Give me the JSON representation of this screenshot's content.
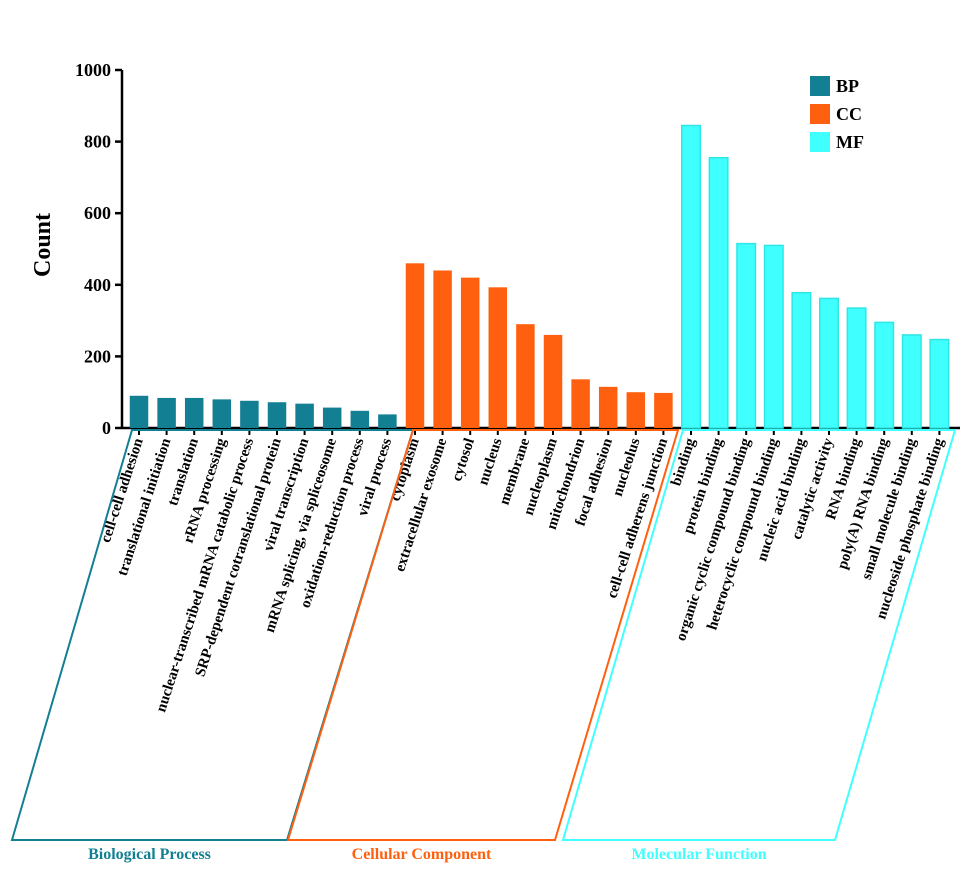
{
  "chart_data": {
    "type": "bar",
    "ylabel": "Count",
    "ylim": [
      0,
      1000
    ],
    "yticks": [
      0,
      200,
      400,
      600,
      800,
      1000
    ],
    "legend_position": "top-right",
    "colors": {
      "BP": "#137f93",
      "CC": "#ff6010",
      "MF": "#40ffff"
    },
    "series": [
      {
        "name": "BP",
        "group_label": "Biological Process",
        "categories": [
          "cell-cell adhesion",
          "translational initiation",
          "translation",
          "rRNA processing",
          "nuclear-transcribed mRNA catabolic process",
          "SRP-dependent cotranslational protein",
          "viral transcription",
          "mRNA splicing, via spliceosome",
          "oxidation-reduction process",
          "viral process"
        ],
        "values": [
          90,
          84,
          84,
          80,
          76,
          72,
          68,
          57,
          48,
          38
        ]
      },
      {
        "name": "CC",
        "group_label": "Cellular Component",
        "categories": [
          "cytoplasm",
          "extracellular exosome",
          "cytosol",
          "nucleus",
          "membrane",
          "nucleoplasm",
          "mitochondrion",
          "focal adhesion",
          "nucleolus",
          "cell-cell adherens junction"
        ],
        "values": [
          460,
          440,
          420,
          393,
          290,
          260,
          136,
          115,
          100,
          98
        ]
      },
      {
        "name": "MF",
        "group_label": "Molecular Function",
        "categories": [
          "binding",
          "protein binding",
          "organic cyclic compound binding",
          "heterocyclic compound binding",
          "nucleic acid binding",
          "catalytic activity",
          "RNA binding",
          "poly(A) RNA binding",
          "small molecule binding",
          "nucleoside phosphate binding"
        ],
        "values": [
          845,
          755,
          515,
          510,
          378,
          362,
          335,
          295,
          260,
          247
        ]
      }
    ]
  }
}
